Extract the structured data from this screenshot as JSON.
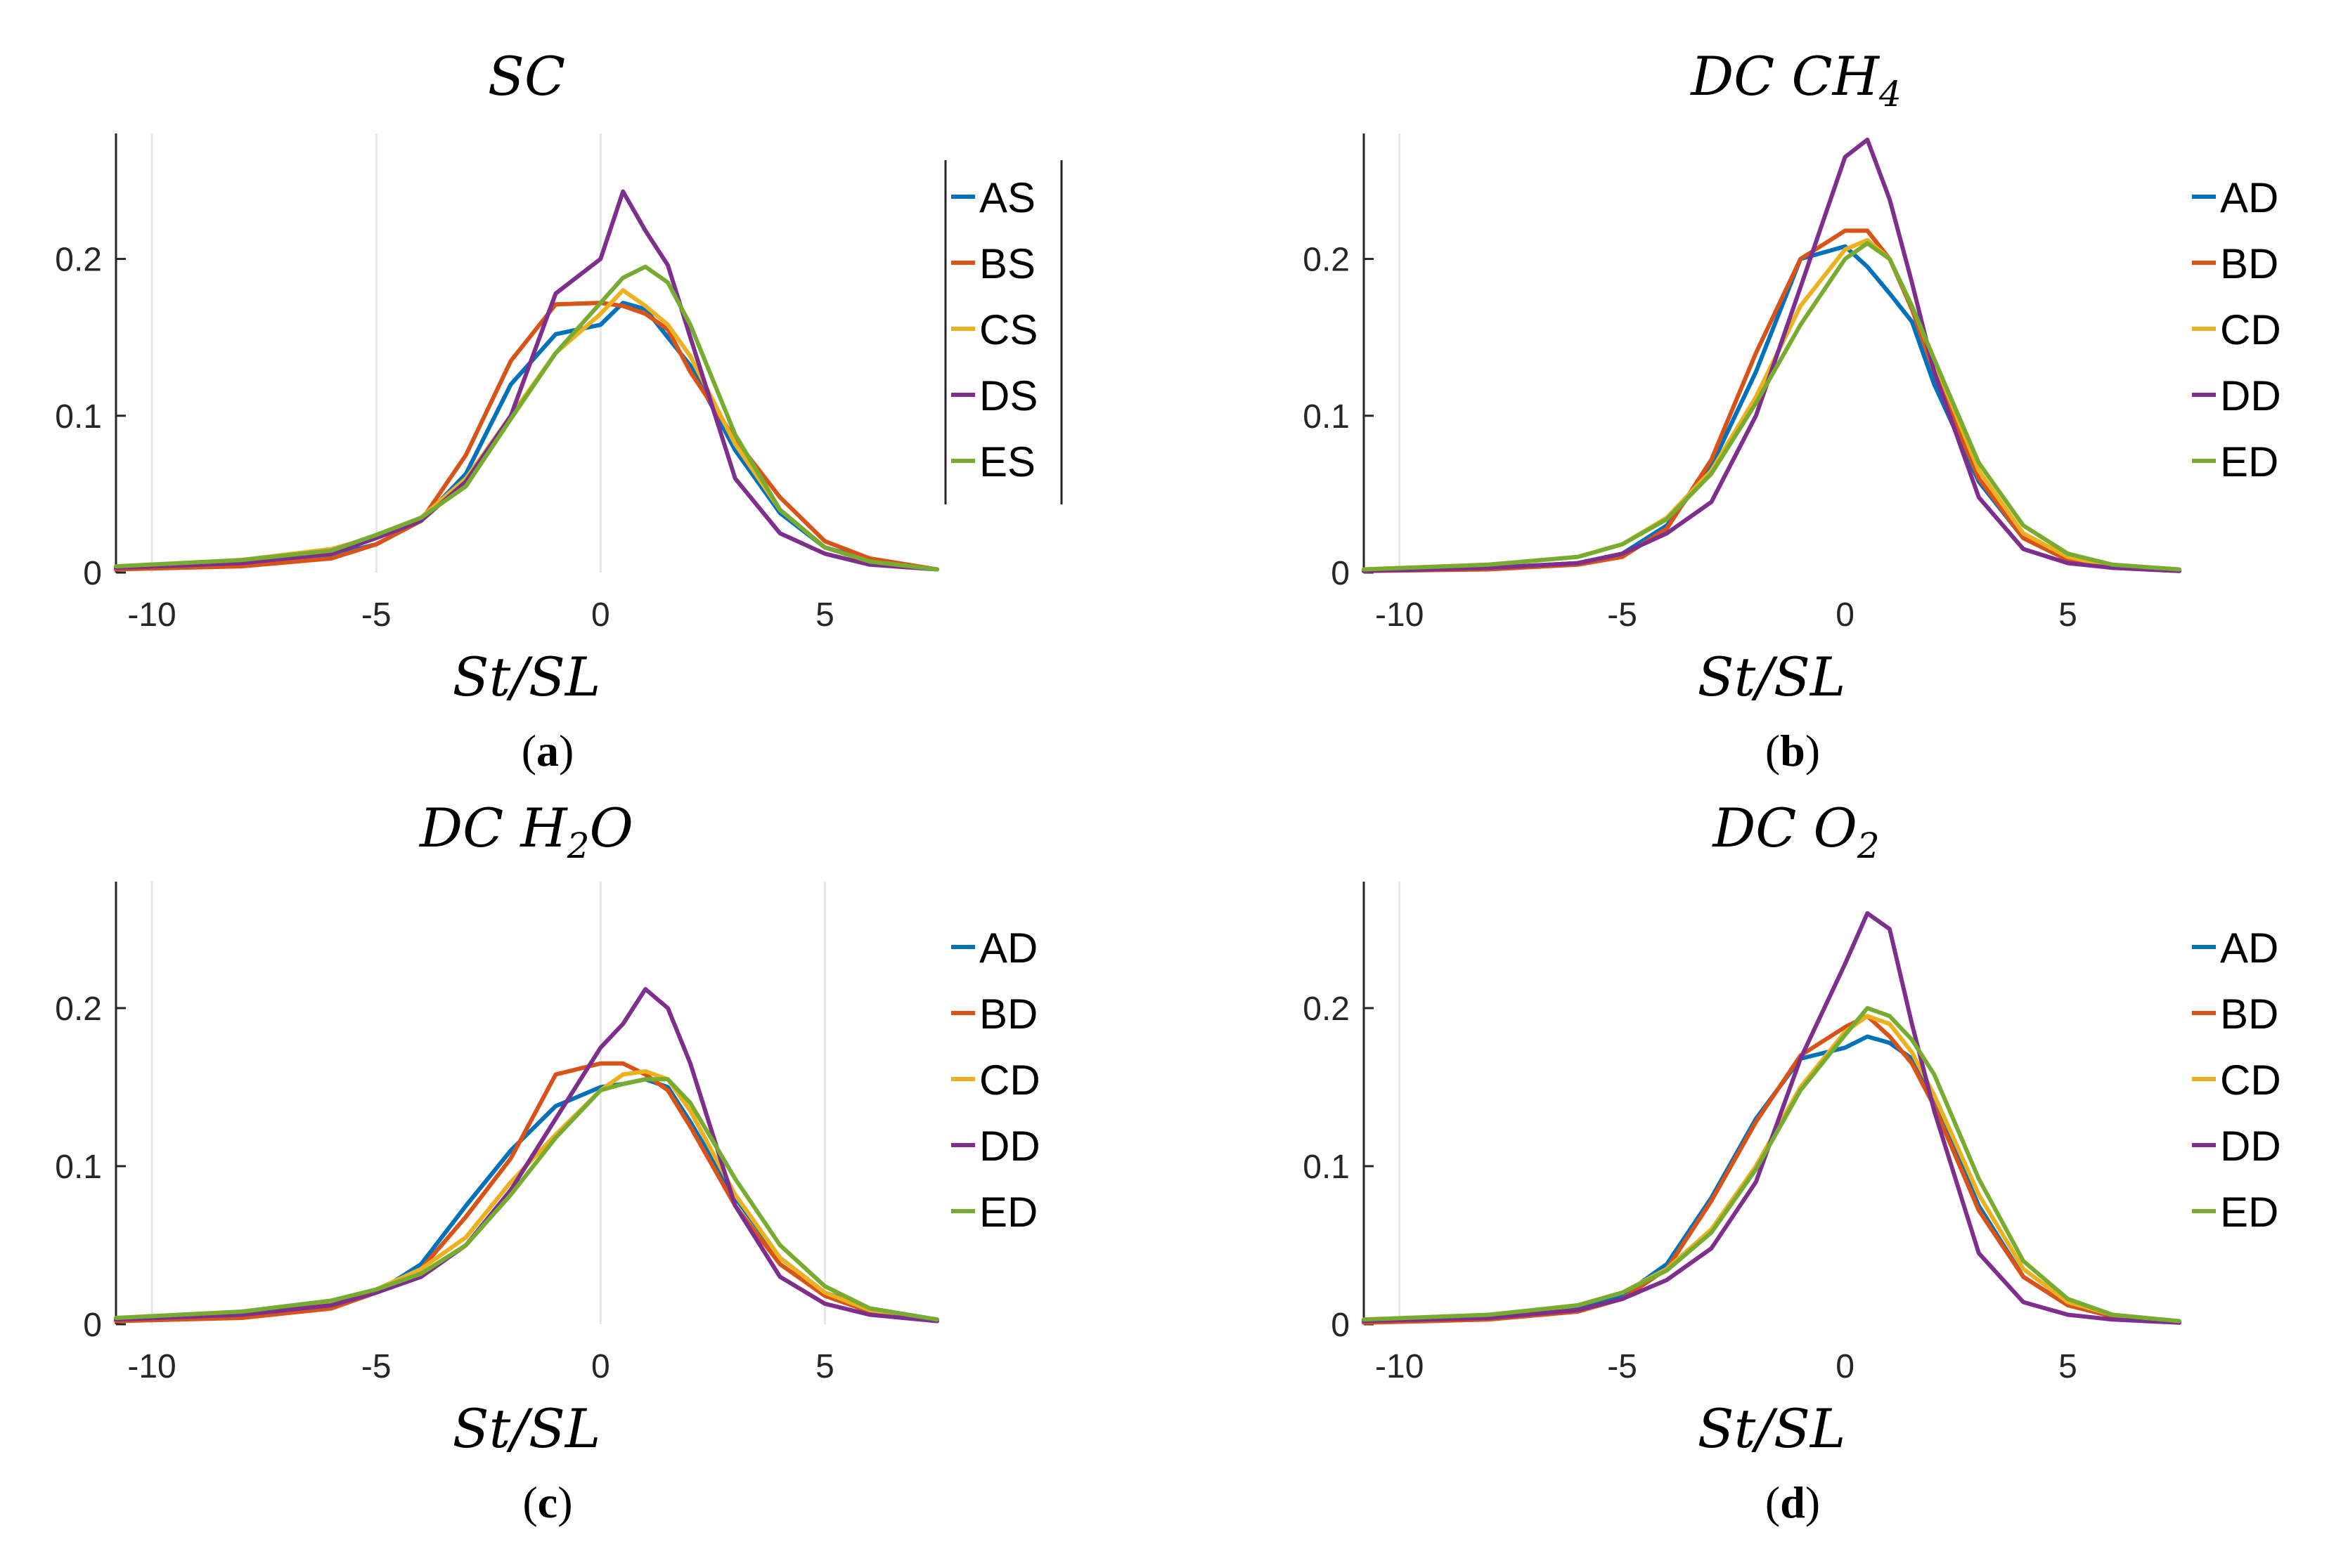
{
  "chart_data": [
    {
      "type": "line",
      "panel_label": "a",
      "title": "SC",
      "title_sub": "",
      "title_suffix": "",
      "xlabel": "St/SL",
      "ylabel": "",
      "xlim": [
        -10.8,
        7.5
      ],
      "ylim": [
        0,
        0.28
      ],
      "xticks": [
        -10,
        -5,
        0,
        5
      ],
      "xtick_labels": [
        "-10",
        "-5",
        "0",
        "5"
      ],
      "yticks": [
        0,
        0.1,
        0.2
      ],
      "ytick_labels": [
        "0",
        "0.1",
        "0.2"
      ],
      "xgrid": [
        -10,
        -5,
        0
      ],
      "legend_box": true,
      "x": [
        -10.8,
        -8,
        -6,
        -5,
        -4,
        -3,
        -2,
        -1,
        0,
        0.5,
        1,
        1.5,
        2,
        3,
        4,
        5,
        6,
        7.5
      ],
      "series": [
        {
          "name": "AS",
          "color": "#0072BD",
          "values": [
            0.003,
            0.005,
            0.011,
            0.018,
            0.033,
            0.063,
            0.12,
            0.152,
            0.158,
            0.172,
            0.168,
            0.15,
            0.132,
            0.078,
            0.038,
            0.016,
            0.008,
            0.002
          ]
        },
        {
          "name": "BS",
          "color": "#D95319",
          "values": [
            0.002,
            0.004,
            0.009,
            0.018,
            0.033,
            0.075,
            0.135,
            0.171,
            0.172,
            0.17,
            0.165,
            0.155,
            0.128,
            0.085,
            0.048,
            0.02,
            0.009,
            0.002
          ]
        },
        {
          "name": "CS",
          "color": "#EDB120",
          "values": [
            0.003,
            0.008,
            0.015,
            0.023,
            0.035,
            0.06,
            0.1,
            0.14,
            0.165,
            0.18,
            0.17,
            0.158,
            0.138,
            0.082,
            0.04,
            0.016,
            0.007,
            0.002
          ]
        },
        {
          "name": "DS",
          "color": "#7E2F8E",
          "values": [
            0.003,
            0.006,
            0.012,
            0.022,
            0.033,
            0.058,
            0.1,
            0.178,
            0.2,
            0.243,
            0.218,
            0.196,
            0.15,
            0.06,
            0.025,
            0.012,
            0.005,
            0.002
          ]
        },
        {
          "name": "ES",
          "color": "#77AC30",
          "values": [
            0.004,
            0.008,
            0.014,
            0.024,
            0.035,
            0.055,
            0.098,
            0.14,
            0.172,
            0.188,
            0.195,
            0.185,
            0.158,
            0.088,
            0.04,
            0.016,
            0.007,
            0.002
          ]
        }
      ]
    },
    {
      "type": "line",
      "panel_label": "b",
      "title": "DC CH",
      "title_sub": "4",
      "title_suffix": "",
      "xlabel": "St/SL",
      "ylabel": "",
      "xlim": [
        -10.8,
        7.5
      ],
      "ylim": [
        0,
        0.28
      ],
      "xticks": [
        -10,
        -5,
        0,
        5
      ],
      "xtick_labels": [
        "-10",
        "-5",
        "0",
        "5"
      ],
      "yticks": [
        0,
        0.1,
        0.2
      ],
      "ytick_labels": [
        "0",
        "0.1",
        "0.2"
      ],
      "xgrid": [
        -10
      ],
      "legend_box": false,
      "x": [
        -10.8,
        -8,
        -6,
        -5,
        -4,
        -3,
        -2,
        -1,
        0,
        0.5,
        1,
        1.5,
        2,
        3,
        4,
        5,
        6,
        7.5
      ],
      "series": [
        {
          "name": "AD",
          "color": "#0072BD",
          "values": [
            0.001,
            0.003,
            0.006,
            0.012,
            0.03,
            0.068,
            0.128,
            0.2,
            0.208,
            0.195,
            0.178,
            0.16,
            0.12,
            0.058,
            0.022,
            0.008,
            0.004,
            0.001
          ]
        },
        {
          "name": "BD",
          "color": "#D95319",
          "values": [
            0.001,
            0.002,
            0.005,
            0.01,
            0.028,
            0.072,
            0.14,
            0.2,
            0.218,
            0.218,
            0.2,
            0.168,
            0.128,
            0.06,
            0.022,
            0.008,
            0.003,
            0.001
          ]
        },
        {
          "name": "CD",
          "color": "#EDB120",
          "values": [
            0.002,
            0.005,
            0.01,
            0.018,
            0.035,
            0.065,
            0.112,
            0.17,
            0.206,
            0.212,
            0.2,
            0.17,
            0.135,
            0.065,
            0.025,
            0.01,
            0.004,
            0.001
          ]
        },
        {
          "name": "DD",
          "color": "#7E2F8E",
          "values": [
            0.001,
            0.003,
            0.006,
            0.012,
            0.025,
            0.045,
            0.1,
            0.182,
            0.265,
            0.276,
            0.238,
            0.185,
            0.128,
            0.048,
            0.015,
            0.006,
            0.003,
            0.001
          ]
        },
        {
          "name": "ED",
          "color": "#77AC30",
          "values": [
            0.002,
            0.005,
            0.01,
            0.018,
            0.034,
            0.063,
            0.108,
            0.158,
            0.2,
            0.21,
            0.2,
            0.17,
            0.136,
            0.07,
            0.03,
            0.012,
            0.005,
            0.002
          ]
        }
      ]
    },
    {
      "type": "line",
      "panel_label": "c",
      "title": "DC H",
      "title_sub": "2",
      "title_suffix": "O",
      "xlabel": "St/SL",
      "ylabel": "",
      "xlim": [
        -10.8,
        7.5
      ],
      "ylim": [
        0,
        0.28
      ],
      "xticks": [
        -10,
        -5,
        0,
        5
      ],
      "xtick_labels": [
        "-10",
        "-5",
        "0",
        "5"
      ],
      "yticks": [
        0,
        0.1,
        0.2
      ],
      "ytick_labels": [
        "0",
        "0.1",
        "0.2"
      ],
      "xgrid": [
        -10,
        0,
        5
      ],
      "legend_box": false,
      "x": [
        -10.8,
        -8,
        -6,
        -5,
        -4,
        -3,
        -2,
        -1,
        0,
        0.5,
        1,
        1.5,
        2,
        3,
        4,
        5,
        6,
        7.5
      ],
      "series": [
        {
          "name": "AD",
          "color": "#0072BD",
          "values": [
            0.003,
            0.006,
            0.012,
            0.02,
            0.038,
            0.075,
            0.11,
            0.138,
            0.15,
            0.152,
            0.155,
            0.15,
            0.128,
            0.08,
            0.042,
            0.02,
            0.01,
            0.003
          ]
        },
        {
          "name": "BD",
          "color": "#D95319",
          "values": [
            0.002,
            0.004,
            0.01,
            0.02,
            0.035,
            0.068,
            0.105,
            0.158,
            0.165,
            0.165,
            0.158,
            0.148,
            0.125,
            0.075,
            0.038,
            0.018,
            0.008,
            0.002
          ]
        },
        {
          "name": "CD",
          "color": "#EDB120",
          "values": [
            0.003,
            0.007,
            0.014,
            0.022,
            0.035,
            0.055,
            0.09,
            0.12,
            0.148,
            0.158,
            0.16,
            0.155,
            0.135,
            0.082,
            0.042,
            0.02,
            0.009,
            0.003
          ]
        },
        {
          "name": "DD",
          "color": "#7E2F8E",
          "values": [
            0.003,
            0.006,
            0.012,
            0.02,
            0.03,
            0.05,
            0.085,
            0.13,
            0.175,
            0.19,
            0.212,
            0.2,
            0.165,
            0.075,
            0.03,
            0.013,
            0.006,
            0.002
          ]
        },
        {
          "name": "ED",
          "color": "#77AC30",
          "values": [
            0.004,
            0.008,
            0.015,
            0.022,
            0.032,
            0.05,
            0.082,
            0.118,
            0.148,
            0.152,
            0.155,
            0.155,
            0.14,
            0.092,
            0.05,
            0.024,
            0.01,
            0.003
          ]
        }
      ]
    },
    {
      "type": "line",
      "panel_label": "d",
      "title": "DC O",
      "title_sub": "2",
      "title_suffix": "",
      "xlabel": "St/SL",
      "ylabel": "",
      "xlim": [
        -10.8,
        7.5
      ],
      "ylim": [
        0,
        0.28
      ],
      "xticks": [
        -10,
        -5,
        0,
        5
      ],
      "xtick_labels": [
        "-10",
        "-5",
        "0",
        "5"
      ],
      "yticks": [
        0,
        0.1,
        0.2
      ],
      "ytick_labels": [
        "0",
        "0.1",
        "0.2"
      ],
      "xgrid": [
        -10
      ],
      "legend_box": false,
      "x": [
        -10.8,
        -8,
        -6,
        -5,
        -4,
        -3,
        -2,
        -1,
        0,
        0.5,
        1,
        1.5,
        2,
        3,
        4,
        5,
        6,
        7.5
      ],
      "series": [
        {
          "name": "AD",
          "color": "#0072BD",
          "values": [
            0.002,
            0.004,
            0.01,
            0.018,
            0.038,
            0.08,
            0.13,
            0.168,
            0.175,
            0.182,
            0.178,
            0.168,
            0.14,
            0.075,
            0.03,
            0.012,
            0.005,
            0.001
          ]
        },
        {
          "name": "BD",
          "color": "#D95319",
          "values": [
            0.001,
            0.003,
            0.008,
            0.016,
            0.035,
            0.078,
            0.128,
            0.17,
            0.188,
            0.195,
            0.182,
            0.165,
            0.138,
            0.072,
            0.03,
            0.012,
            0.005,
            0.001
          ]
        },
        {
          "name": "CD",
          "color": "#EDB120",
          "values": [
            0.002,
            0.005,
            0.012,
            0.02,
            0.035,
            0.06,
            0.1,
            0.15,
            0.185,
            0.195,
            0.19,
            0.172,
            0.145,
            0.082,
            0.035,
            0.014,
            0.006,
            0.001
          ]
        },
        {
          "name": "DD",
          "color": "#7E2F8E",
          "values": [
            0.002,
            0.004,
            0.009,
            0.016,
            0.028,
            0.048,
            0.09,
            0.168,
            0.228,
            0.26,
            0.25,
            0.19,
            0.135,
            0.045,
            0.014,
            0.006,
            0.003,
            0.001
          ]
        },
        {
          "name": "ED",
          "color": "#77AC30",
          "values": [
            0.003,
            0.006,
            0.012,
            0.02,
            0.034,
            0.058,
            0.098,
            0.148,
            0.183,
            0.2,
            0.195,
            0.18,
            0.158,
            0.092,
            0.04,
            0.016,
            0.006,
            0.002
          ]
        }
      ]
    }
  ]
}
